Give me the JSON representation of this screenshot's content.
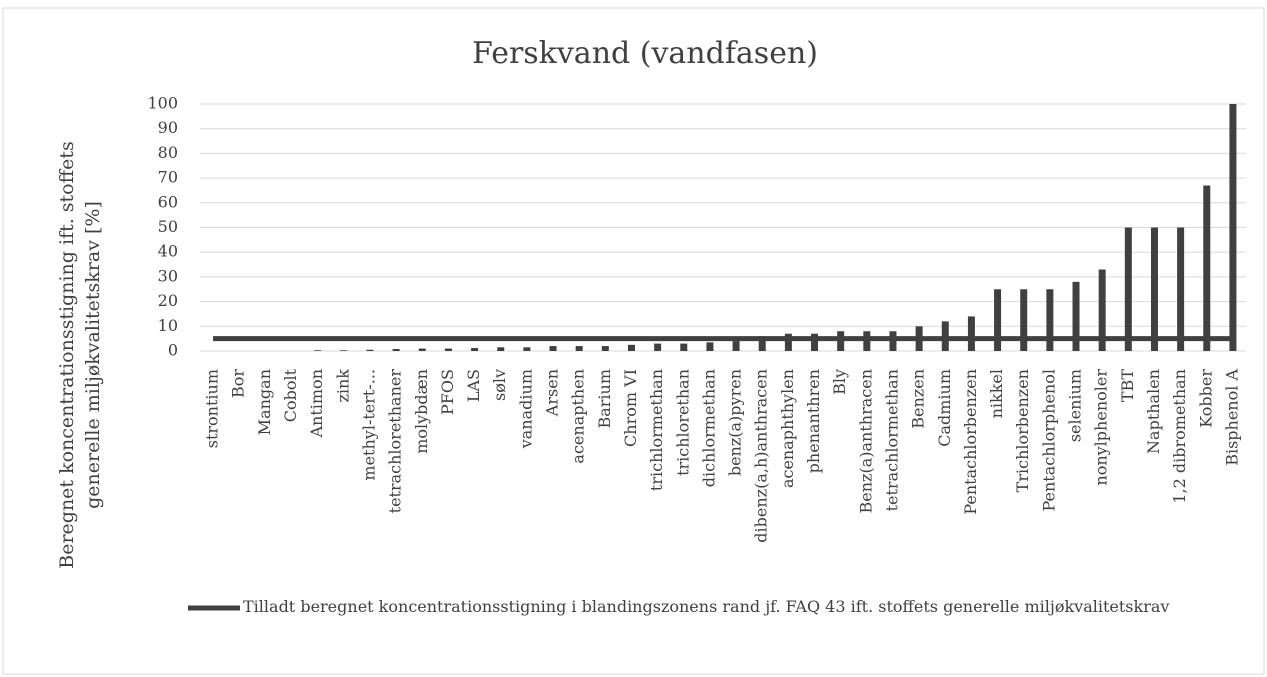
{
  "chart_data": {
    "type": "bar",
    "title": "Ferskvand (vandfasen)",
    "y_label": [
      "Beregnet koncentrationsstigning ift. stoffets",
      "generelle miljøkvalitetskrav [%]"
    ],
    "categories": [
      "strontium",
      "Bor",
      "Mangan",
      "Cobolt",
      "Antimon",
      "zink",
      "methyl-tert-...",
      "tetrachlorethaner",
      "molybdæn",
      "PFOS",
      "LAS",
      "sølv",
      "vanadium",
      "Arsen",
      "acenapthen",
      "Barium",
      "Chrom VI",
      "trichlormethan",
      "trichlorethan",
      "dichlormethan",
      "benz(a)pyren",
      "dibenz(a,h)anthracen",
      "acenaphthylen",
      "phenanthren",
      "Bly",
      "Benz(a)anthracen",
      "tetrachlormethan",
      "Benzen",
      "Cadmium",
      "Pentachlorbenzen",
      "nikkel",
      "Trichlorbenzen",
      "Pentachlorphenol",
      "selenium",
      "nonylphenoler",
      "TBT",
      "Napthalen",
      "1,2 dibromethan",
      "Kobber",
      "Bisphenol A"
    ],
    "series": [
      {
        "type": "bar",
        "color": "#404040",
        "values": [
          0,
          0,
          0,
          0,
          0.3,
          0.3,
          0.5,
          0.8,
          1,
          1,
          1.2,
          1.5,
          1.5,
          2,
          2,
          2,
          2.5,
          3,
          3,
          3.5,
          4,
          6,
          7,
          7,
          8,
          8,
          8,
          10,
          12,
          14,
          25,
          25,
          25,
          28,
          33,
          50,
          50,
          50,
          67,
          100
        ]
      },
      {
        "type": "line",
        "name": "Tilladt beregnet koncentrationsstigning i blandingszonens rand jf. FAQ 43 ift. stoffets generelle miljøkvalitetskrav",
        "color": "#404040",
        "values": [
          5,
          5,
          5,
          5,
          5,
          5,
          5,
          5,
          5,
          5,
          5,
          5,
          5,
          5,
          5,
          5,
          5,
          5,
          5,
          5,
          5,
          5,
          5,
          5,
          5,
          5,
          5,
          5,
          5,
          5,
          5,
          5,
          5,
          5,
          5,
          5,
          5,
          5,
          5,
          5
        ]
      }
    ],
    "ylim": [
      0,
      100
    ],
    "yticks": [
      0,
      10,
      20,
      30,
      40,
      50,
      60,
      70,
      80,
      90,
      100
    ],
    "grid": true,
    "legend": "bottom"
  }
}
